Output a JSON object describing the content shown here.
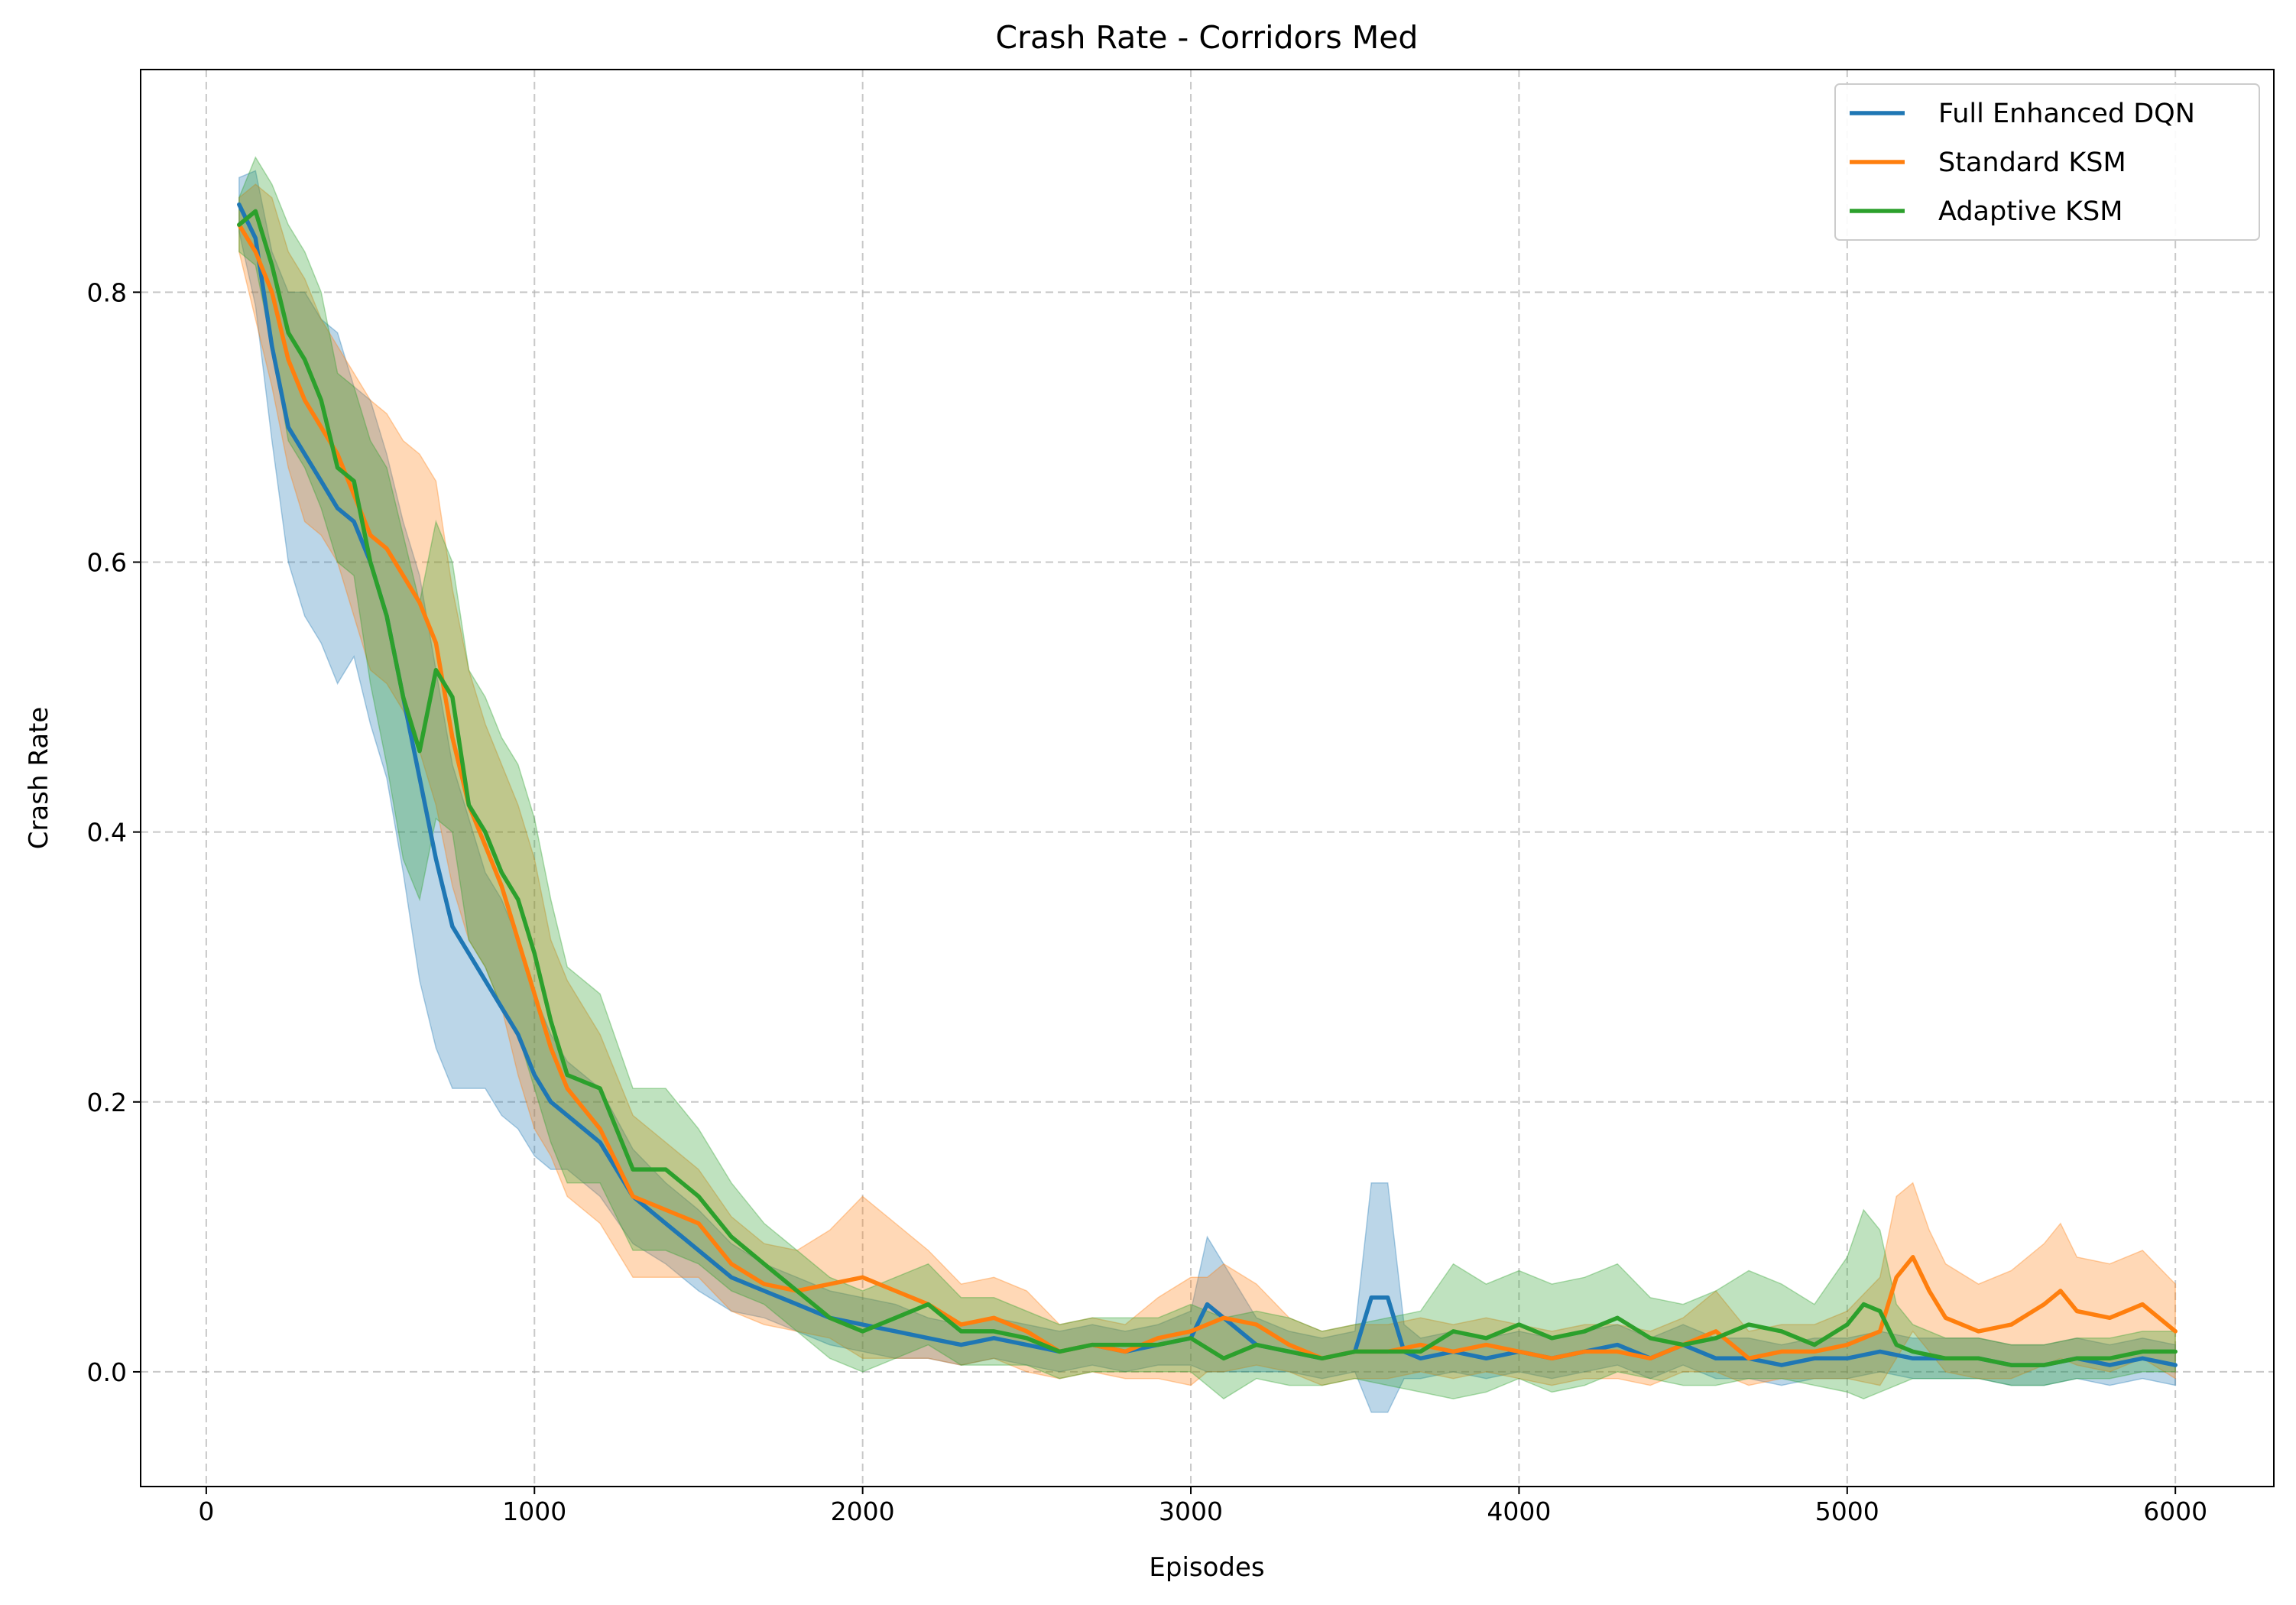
{
  "chart_data": {
    "type": "line",
    "title": "Crash Rate - Corridors Med",
    "xlabel": "Episodes",
    "ylabel": "Crash Rate",
    "xlim": [
      -200,
      6300
    ],
    "ylim": [
      -0.085,
      0.965
    ],
    "xticks": [
      0,
      1000,
      2000,
      3000,
      4000,
      5000,
      6000
    ],
    "yticks": [
      0.0,
      0.2,
      0.4,
      0.6,
      0.8
    ],
    "xtick_labels": [
      "0",
      "1000",
      "2000",
      "3000",
      "4000",
      "5000",
      "6000"
    ],
    "ytick_labels": [
      "0.0",
      "0.2",
      "0.4",
      "0.6",
      "0.8"
    ],
    "grid": true,
    "legend_position": "top-right",
    "shaded_band": "standard deviation band around each mean line",
    "series": [
      {
        "name": "Full Enhanced DQN",
        "color": "#1f77b4",
        "x": [
          100,
          150,
          200,
          250,
          300,
          350,
          400,
          450,
          500,
          550,
          600,
          650,
          700,
          750,
          800,
          850,
          900,
          950,
          1000,
          1050,
          1100,
          1200,
          1300,
          1400,
          1500,
          1600,
          1700,
          1800,
          1900,
          2000,
          2100,
          2200,
          2300,
          2400,
          2500,
          2600,
          2700,
          2800,
          2900,
          3000,
          3050,
          3100,
          3200,
          3300,
          3400,
          3500,
          3550,
          3600,
          3650,
          3700,
          3800,
          3900,
          4000,
          4100,
          4200,
          4300,
          4400,
          4500,
          4600,
          4700,
          4800,
          4900,
          5000,
          5100,
          5200,
          5300,
          5400,
          5500,
          5600,
          5700,
          5800,
          5900,
          6000
        ],
        "values": [
          0.865,
          0.84,
          0.76,
          0.7,
          0.68,
          0.66,
          0.64,
          0.63,
          0.6,
          0.56,
          0.5,
          0.44,
          0.38,
          0.33,
          0.31,
          0.29,
          0.27,
          0.25,
          0.22,
          0.2,
          0.19,
          0.17,
          0.13,
          0.11,
          0.09,
          0.07,
          0.06,
          0.05,
          0.04,
          0.035,
          0.03,
          0.025,
          0.02,
          0.025,
          0.02,
          0.015,
          0.02,
          0.015,
          0.02,
          0.025,
          0.05,
          0.04,
          0.02,
          0.015,
          0.01,
          0.015,
          0.055,
          0.055,
          0.015,
          0.01,
          0.015,
          0.01,
          0.015,
          0.01,
          0.015,
          0.02,
          0.01,
          0.02,
          0.01,
          0.01,
          0.005,
          0.01,
          0.01,
          0.015,
          0.01,
          0.01,
          0.01,
          0.005,
          0.005,
          0.01,
          0.005,
          0.01,
          0.005
        ],
        "spread": [
          0.02,
          0.05,
          0.07,
          0.1,
          0.12,
          0.12,
          0.13,
          0.1,
          0.12,
          0.12,
          0.13,
          0.15,
          0.14,
          0.12,
          0.1,
          0.08,
          0.08,
          0.07,
          0.06,
          0.05,
          0.04,
          0.04,
          0.035,
          0.03,
          0.03,
          0.025,
          0.02,
          0.02,
          0.02,
          0.02,
          0.02,
          0.015,
          0.015,
          0.015,
          0.015,
          0.015,
          0.015,
          0.015,
          0.015,
          0.02,
          0.05,
          0.04,
          0.02,
          0.015,
          0.015,
          0.015,
          0.085,
          0.085,
          0.02,
          0.015,
          0.015,
          0.015,
          0.015,
          0.015,
          0.015,
          0.015,
          0.015,
          0.015,
          0.015,
          0.015,
          0.015,
          0.015,
          0.015,
          0.015,
          0.015,
          0.015,
          0.015,
          0.015,
          0.015,
          0.015,
          0.015,
          0.015,
          0.015
        ]
      },
      {
        "name": "Standard KSM",
        "color": "#ff7f0e",
        "x": [
          100,
          150,
          200,
          250,
          300,
          350,
          400,
          450,
          500,
          550,
          600,
          650,
          700,
          750,
          800,
          850,
          900,
          950,
          1000,
          1050,
          1100,
          1200,
          1300,
          1400,
          1500,
          1600,
          1700,
          1800,
          1900,
          2000,
          2100,
          2200,
          2300,
          2400,
          2500,
          2600,
          2700,
          2800,
          2900,
          3000,
          3050,
          3100,
          3200,
          3300,
          3400,
          3500,
          3600,
          3700,
          3800,
          3900,
          4000,
          4100,
          4200,
          4300,
          4400,
          4500,
          4600,
          4700,
          4800,
          4900,
          5000,
          5100,
          5150,
          5200,
          5250,
          5300,
          5400,
          5500,
          5600,
          5650,
          5700,
          5800,
          5900,
          6000
        ],
        "values": [
          0.85,
          0.83,
          0.8,
          0.75,
          0.72,
          0.7,
          0.68,
          0.65,
          0.62,
          0.61,
          0.59,
          0.57,
          0.54,
          0.47,
          0.42,
          0.39,
          0.36,
          0.32,
          0.28,
          0.24,
          0.21,
          0.18,
          0.13,
          0.12,
          0.11,
          0.08,
          0.065,
          0.06,
          0.065,
          0.07,
          0.06,
          0.05,
          0.035,
          0.04,
          0.03,
          0.015,
          0.02,
          0.015,
          0.025,
          0.03,
          0.035,
          0.04,
          0.035,
          0.02,
          0.01,
          0.015,
          0.015,
          0.02,
          0.015,
          0.02,
          0.015,
          0.01,
          0.015,
          0.015,
          0.01,
          0.02,
          0.03,
          0.01,
          0.015,
          0.015,
          0.02,
          0.03,
          0.07,
          0.085,
          0.06,
          0.04,
          0.03,
          0.035,
          0.05,
          0.06,
          0.045,
          0.04,
          0.05,
          0.03
        ],
        "spread": [
          0.02,
          0.05,
          0.07,
          0.08,
          0.09,
          0.08,
          0.08,
          0.09,
          0.1,
          0.1,
          0.1,
          0.11,
          0.12,
          0.11,
          0.1,
          0.09,
          0.09,
          0.1,
          0.1,
          0.08,
          0.08,
          0.07,
          0.06,
          0.05,
          0.04,
          0.035,
          0.03,
          0.03,
          0.04,
          0.06,
          0.05,
          0.04,
          0.03,
          0.03,
          0.03,
          0.02,
          0.02,
          0.02,
          0.03,
          0.04,
          0.035,
          0.04,
          0.03,
          0.02,
          0.02,
          0.02,
          0.02,
          0.02,
          0.02,
          0.02,
          0.02,
          0.02,
          0.02,
          0.02,
          0.02,
          0.02,
          0.03,
          0.02,
          0.02,
          0.02,
          0.025,
          0.04,
          0.06,
          0.055,
          0.045,
          0.04,
          0.035,
          0.04,
          0.045,
          0.05,
          0.04,
          0.04,
          0.04,
          0.035
        ]
      },
      {
        "name": "Adaptive KSM",
        "color": "#2ca02c",
        "x": [
          100,
          150,
          200,
          250,
          300,
          350,
          400,
          450,
          500,
          550,
          600,
          650,
          700,
          750,
          800,
          850,
          900,
          950,
          1000,
          1050,
          1100,
          1200,
          1300,
          1400,
          1500,
          1600,
          1700,
          1800,
          1900,
          2000,
          2100,
          2200,
          2300,
          2400,
          2500,
          2600,
          2700,
          2800,
          2900,
          3000,
          3100,
          3200,
          3300,
          3400,
          3500,
          3600,
          3700,
          3800,
          3900,
          4000,
          4100,
          4200,
          4300,
          4400,
          4500,
          4600,
          4700,
          4800,
          4900,
          5000,
          5050,
          5100,
          5150,
          5200,
          5300,
          5400,
          5500,
          5600,
          5700,
          5800,
          5900,
          6000
        ],
        "values": [
          0.85,
          0.86,
          0.82,
          0.77,
          0.75,
          0.72,
          0.67,
          0.66,
          0.6,
          0.56,
          0.5,
          0.46,
          0.52,
          0.5,
          0.42,
          0.4,
          0.37,
          0.35,
          0.31,
          0.26,
          0.22,
          0.21,
          0.15,
          0.15,
          0.13,
          0.1,
          0.08,
          0.06,
          0.04,
          0.03,
          0.04,
          0.05,
          0.03,
          0.03,
          0.025,
          0.015,
          0.02,
          0.02,
          0.02,
          0.025,
          0.01,
          0.02,
          0.015,
          0.01,
          0.015,
          0.015,
          0.015,
          0.03,
          0.025,
          0.035,
          0.025,
          0.03,
          0.04,
          0.025,
          0.02,
          0.025,
          0.035,
          0.03,
          0.02,
          0.035,
          0.05,
          0.045,
          0.02,
          0.015,
          0.01,
          0.01,
          0.005,
          0.005,
          0.01,
          0.01,
          0.015,
          0.015
        ],
        "spread": [
          0.02,
          0.04,
          0.06,
          0.08,
          0.08,
          0.08,
          0.07,
          0.07,
          0.09,
          0.11,
          0.12,
          0.11,
          0.11,
          0.1,
          0.1,
          0.1,
          0.1,
          0.1,
          0.1,
          0.09,
          0.08,
          0.07,
          0.06,
          0.06,
          0.05,
          0.04,
          0.03,
          0.03,
          0.03,
          0.03,
          0.03,
          0.03,
          0.025,
          0.025,
          0.02,
          0.02,
          0.02,
          0.02,
          0.02,
          0.025,
          0.03,
          0.025,
          0.025,
          0.02,
          0.02,
          0.025,
          0.03,
          0.05,
          0.04,
          0.04,
          0.04,
          0.04,
          0.04,
          0.03,
          0.03,
          0.035,
          0.04,
          0.035,
          0.03,
          0.05,
          0.07,
          0.06,
          0.03,
          0.02,
          0.015,
          0.015,
          0.015,
          0.015,
          0.015,
          0.015,
          0.015,
          0.015
        ]
      }
    ]
  }
}
